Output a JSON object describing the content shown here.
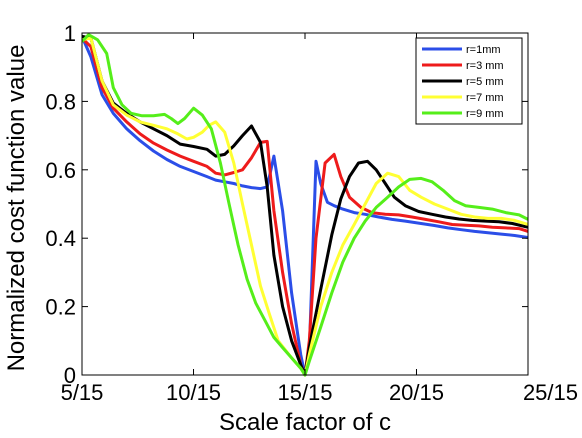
{
  "chart_data": {
    "type": "line",
    "xlabel": "Scale factor of c",
    "ylabel": "Normalized cost function value",
    "xlim": [
      0.3333,
      1.6667
    ],
    "ylim": [
      0,
      1
    ],
    "x_ticks": [
      {
        "value": 0.3333,
        "label": "5/15"
      },
      {
        "value": 0.6667,
        "label": "10/15"
      },
      {
        "value": 1.0,
        "label": "15/15"
      },
      {
        "value": 1.3333,
        "label": "20/15"
      },
      {
        "value": 1.6667,
        "label": "25/15"
      }
    ],
    "y_ticks": [
      {
        "value": 0,
        "label": "0"
      },
      {
        "value": 0.2,
        "label": "0.2"
      },
      {
        "value": 0.4,
        "label": "0.4"
      },
      {
        "value": 0.6,
        "label": "0.6"
      },
      {
        "value": 0.8,
        "label": "0.8"
      },
      {
        "value": 1,
        "label": "1"
      }
    ],
    "grid": false,
    "legend_position": "top-right",
    "series": [
      {
        "name": "r=1mm",
        "color": "#2b4ee8",
        "points": [
          [
            0.333,
            0.99
          ],
          [
            0.36,
            0.93
          ],
          [
            0.393,
            0.82
          ],
          [
            0.427,
            0.765
          ],
          [
            0.467,
            0.72
          ],
          [
            0.507,
            0.685
          ],
          [
            0.547,
            0.655
          ],
          [
            0.587,
            0.63
          ],
          [
            0.627,
            0.61
          ],
          [
            0.667,
            0.595
          ],
          [
            0.707,
            0.58
          ],
          [
            0.733,
            0.57
          ],
          [
            0.76,
            0.565
          ],
          [
            0.787,
            0.56
          ],
          [
            0.813,
            0.553
          ],
          [
            0.84,
            0.548
          ],
          [
            0.867,
            0.545
          ],
          [
            0.887,
            0.55
          ],
          [
            0.907,
            0.64
          ],
          [
            0.933,
            0.48
          ],
          [
            0.96,
            0.24
          ],
          [
            0.987,
            0.06
          ],
          [
            1.0,
            0.0
          ],
          [
            1.013,
            0.07
          ],
          [
            1.033,
            0.625
          ],
          [
            1.047,
            0.56
          ],
          [
            1.067,
            0.505
          ],
          [
            1.087,
            0.495
          ],
          [
            1.113,
            0.485
          ],
          [
            1.147,
            0.475
          ],
          [
            1.18,
            0.47
          ],
          [
            1.22,
            0.462
          ],
          [
            1.26,
            0.455
          ],
          [
            1.3,
            0.45
          ],
          [
            1.347,
            0.443
          ],
          [
            1.387,
            0.437
          ],
          [
            1.427,
            0.43
          ],
          [
            1.467,
            0.425
          ],
          [
            1.507,
            0.42
          ],
          [
            1.547,
            0.416
          ],
          [
            1.587,
            0.412
          ],
          [
            1.627,
            0.408
          ],
          [
            1.667,
            0.402
          ]
        ]
      },
      {
        "name": "r=3 mm",
        "color": "#ee1b1b",
        "points": [
          [
            0.333,
            0.985
          ],
          [
            0.36,
            0.96
          ],
          [
            0.393,
            0.84
          ],
          [
            0.427,
            0.78
          ],
          [
            0.467,
            0.74
          ],
          [
            0.507,
            0.705
          ],
          [
            0.547,
            0.678
          ],
          [
            0.587,
            0.658
          ],
          [
            0.627,
            0.64
          ],
          [
            0.667,
            0.625
          ],
          [
            0.707,
            0.61
          ],
          [
            0.733,
            0.59
          ],
          [
            0.76,
            0.585
          ],
          [
            0.787,
            0.592
          ],
          [
            0.813,
            0.6
          ],
          [
            0.84,
            0.635
          ],
          [
            0.867,
            0.68
          ],
          [
            0.887,
            0.683
          ],
          [
            0.907,
            0.48
          ],
          [
            0.933,
            0.3
          ],
          [
            0.96,
            0.15
          ],
          [
            0.987,
            0.03
          ],
          [
            1.0,
            0.0
          ],
          [
            1.013,
            0.1
          ],
          [
            1.033,
            0.4
          ],
          [
            1.06,
            0.62
          ],
          [
            1.087,
            0.645
          ],
          [
            1.107,
            0.58
          ],
          [
            1.133,
            0.52
          ],
          [
            1.167,
            0.49
          ],
          [
            1.2,
            0.475
          ],
          [
            1.24,
            0.47
          ],
          [
            1.28,
            0.468
          ],
          [
            1.32,
            0.462
          ],
          [
            1.36,
            0.455
          ],
          [
            1.4,
            0.448
          ],
          [
            1.44,
            0.44
          ],
          [
            1.48,
            0.438
          ],
          [
            1.52,
            0.436
          ],
          [
            1.56,
            0.432
          ],
          [
            1.6,
            0.43
          ],
          [
            1.64,
            0.428
          ],
          [
            1.667,
            0.42
          ]
        ]
      },
      {
        "name": "r=5 mm",
        "color": "#000000",
        "points": [
          [
            0.333,
            0.99
          ],
          [
            0.36,
            0.985
          ],
          [
            0.393,
            0.86
          ],
          [
            0.427,
            0.795
          ],
          [
            0.467,
            0.765
          ],
          [
            0.507,
            0.74
          ],
          [
            0.547,
            0.72
          ],
          [
            0.587,
            0.7
          ],
          [
            0.627,
            0.675
          ],
          [
            0.667,
            0.668
          ],
          [
            0.707,
            0.66
          ],
          [
            0.733,
            0.64
          ],
          [
            0.76,
            0.645
          ],
          [
            0.787,
            0.67
          ],
          [
            0.813,
            0.7
          ],
          [
            0.84,
            0.728
          ],
          [
            0.867,
            0.68
          ],
          [
            0.887,
            0.55
          ],
          [
            0.907,
            0.35
          ],
          [
            0.933,
            0.2
          ],
          [
            0.96,
            0.1
          ],
          [
            0.987,
            0.03
          ],
          [
            1.0,
            0.0
          ],
          [
            1.013,
            0.08
          ],
          [
            1.047,
            0.25
          ],
          [
            1.08,
            0.41
          ],
          [
            1.107,
            0.515
          ],
          [
            1.133,
            0.58
          ],
          [
            1.16,
            0.62
          ],
          [
            1.187,
            0.625
          ],
          [
            1.213,
            0.6
          ],
          [
            1.24,
            0.56
          ],
          [
            1.267,
            0.52
          ],
          [
            1.3,
            0.495
          ],
          [
            1.34,
            0.478
          ],
          [
            1.38,
            0.47
          ],
          [
            1.42,
            0.462
          ],
          [
            1.46,
            0.456
          ],
          [
            1.5,
            0.452
          ],
          [
            1.54,
            0.45
          ],
          [
            1.58,
            0.448
          ],
          [
            1.62,
            0.443
          ],
          [
            1.667,
            0.432
          ]
        ]
      },
      {
        "name": "r=7 mm",
        "color": "#ffff33",
        "points": [
          [
            0.333,
            0.98
          ],
          [
            0.36,
            0.985
          ],
          [
            0.393,
            0.86
          ],
          [
            0.427,
            0.79
          ],
          [
            0.467,
            0.76
          ],
          [
            0.507,
            0.74
          ],
          [
            0.547,
            0.73
          ],
          [
            0.587,
            0.72
          ],
          [
            0.62,
            0.705
          ],
          [
            0.647,
            0.69
          ],
          [
            0.667,
            0.695
          ],
          [
            0.693,
            0.71
          ],
          [
            0.713,
            0.73
          ],
          [
            0.733,
            0.74
          ],
          [
            0.76,
            0.71
          ],
          [
            0.787,
            0.62
          ],
          [
            0.813,
            0.5
          ],
          [
            0.84,
            0.38
          ],
          [
            0.867,
            0.26
          ],
          [
            0.893,
            0.18
          ],
          [
            0.92,
            0.1
          ],
          [
            0.96,
            0.05
          ],
          [
            0.987,
            0.02
          ],
          [
            1.0,
            0.0
          ],
          [
            1.013,
            0.06
          ],
          [
            1.047,
            0.2
          ],
          [
            1.08,
            0.3
          ],
          [
            1.113,
            0.38
          ],
          [
            1.147,
            0.44
          ],
          [
            1.18,
            0.5
          ],
          [
            1.213,
            0.56
          ],
          [
            1.247,
            0.59
          ],
          [
            1.28,
            0.58
          ],
          [
            1.313,
            0.54
          ],
          [
            1.347,
            0.52
          ],
          [
            1.387,
            0.5
          ],
          [
            1.427,
            0.485
          ],
          [
            1.467,
            0.47
          ],
          [
            1.507,
            0.462
          ],
          [
            1.547,
            0.458
          ],
          [
            1.587,
            0.458
          ],
          [
            1.627,
            0.452
          ],
          [
            1.667,
            0.44
          ]
        ]
      },
      {
        "name": "r=9 mm",
        "color": "#55ee1a",
        "points": [
          [
            0.333,
            0.975
          ],
          [
            0.353,
            0.995
          ],
          [
            0.38,
            0.98
          ],
          [
            0.407,
            0.94
          ],
          [
            0.427,
            0.84
          ],
          [
            0.453,
            0.79
          ],
          [
            0.48,
            0.765
          ],
          [
            0.513,
            0.758
          ],
          [
            0.547,
            0.758
          ],
          [
            0.58,
            0.762
          ],
          [
            0.6,
            0.75
          ],
          [
            0.62,
            0.735
          ],
          [
            0.64,
            0.75
          ],
          [
            0.667,
            0.78
          ],
          [
            0.693,
            0.76
          ],
          [
            0.72,
            0.72
          ],
          [
            0.747,
            0.62
          ],
          [
            0.773,
            0.5
          ],
          [
            0.8,
            0.38
          ],
          [
            0.827,
            0.28
          ],
          [
            0.853,
            0.21
          ],
          [
            0.88,
            0.16
          ],
          [
            0.907,
            0.11
          ],
          [
            0.933,
            0.08
          ],
          [
            0.96,
            0.05
          ],
          [
            0.987,
            0.02
          ],
          [
            1.0,
            0.0
          ],
          [
            1.013,
            0.04
          ],
          [
            1.047,
            0.14
          ],
          [
            1.08,
            0.24
          ],
          [
            1.113,
            0.33
          ],
          [
            1.147,
            0.4
          ],
          [
            1.18,
            0.45
          ],
          [
            1.213,
            0.49
          ],
          [
            1.247,
            0.52
          ],
          [
            1.28,
            0.55
          ],
          [
            1.313,
            0.572
          ],
          [
            1.347,
            0.575
          ],
          [
            1.38,
            0.565
          ],
          [
            1.413,
            0.54
          ],
          [
            1.447,
            0.51
          ],
          [
            1.48,
            0.495
          ],
          [
            1.52,
            0.49
          ],
          [
            1.56,
            0.485
          ],
          [
            1.6,
            0.475
          ],
          [
            1.64,
            0.468
          ],
          [
            1.667,
            0.455
          ]
        ]
      }
    ]
  }
}
